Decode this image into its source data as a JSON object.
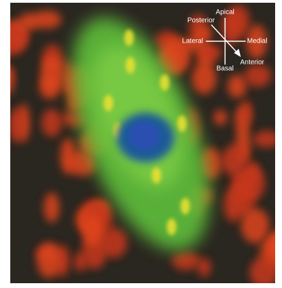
{
  "compass": {
    "apical": "Apical",
    "posterior": "Posterior",
    "lateral": "Lateral",
    "medial": "Medial",
    "basal": "Basal",
    "anterior": "Anterior"
  }
}
